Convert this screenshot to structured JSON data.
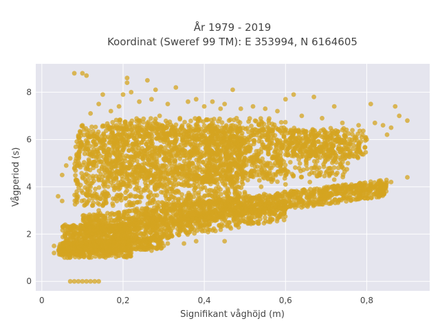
{
  "chart_data": {
    "type": "scatter",
    "title_lines": [
      "År 1979 - 2019",
      "Koordinat (Sweref 99 TM): E 353994, N 6164605"
    ],
    "xlabel": "Signifikant våghöjd (m)",
    "ylabel": "Vågperiod (s)",
    "xlim": [
      -0.015,
      0.955
    ],
    "ylim": [
      -0.4,
      9.2
    ],
    "xticks": [
      0,
      0.2,
      0.4,
      0.6,
      0.8
    ],
    "xtick_labels": [
      "0",
      "0,2",
      "0,4",
      "0,6",
      "0,8"
    ],
    "yticks": [
      0,
      2,
      4,
      6,
      8
    ],
    "ytick_labels": [
      "0",
      "2",
      "4",
      "6",
      "8"
    ],
    "grid": true,
    "marker_color": "#D4A420",
    "plot_bg": "#E5E5EE",
    "series": [
      {
        "values": [
          [
            0.07,
            0
          ],
          [
            0.08,
            0
          ],
          [
            0.09,
            0
          ],
          [
            0.1,
            0
          ],
          [
            0.11,
            0
          ],
          [
            0.12,
            0
          ],
          [
            0.13,
            0
          ],
          [
            0.14,
            0
          ],
          [
            0.08,
            8.8
          ],
          [
            0.1,
            8.8
          ],
          [
            0.11,
            8.7
          ],
          [
            0.21,
            8.6
          ],
          [
            0.26,
            8.5
          ],
          [
            0.21,
            8.4
          ],
          [
            0.33,
            8.2
          ],
          [
            0.28,
            8.1
          ],
          [
            0.47,
            8.1
          ],
          [
            0.22,
            8.0
          ],
          [
            0.15,
            7.9
          ],
          [
            0.2,
            7.9
          ],
          [
            0.38,
            7.7
          ],
          [
            0.42,
            7.6
          ],
          [
            0.45,
            7.5
          ],
          [
            0.62,
            7.9
          ],
          [
            0.6,
            7.7
          ],
          [
            0.67,
            7.8
          ],
          [
            0.81,
            7.5
          ],
          [
            0.72,
            7.4
          ],
          [
            0.87,
            7.4
          ],
          [
            0.88,
            7.0
          ],
          [
            0.9,
            6.8
          ],
          [
            0.86,
            6.5
          ],
          [
            0.85,
            6.2
          ],
          [
            0.8,
            6.0
          ],
          [
            0.55,
            7.3
          ],
          [
            0.52,
            7.4
          ],
          [
            0.05,
            3.4
          ],
          [
            0.04,
            3.6
          ],
          [
            0.05,
            4.5
          ],
          [
            0.06,
            4.9
          ],
          [
            0.07,
            5.2
          ],
          [
            0.09,
            5.8
          ],
          [
            0.09,
            6.1
          ],
          [
            0.1,
            6.6
          ],
          [
            0.12,
            7.1
          ],
          [
            0.14,
            7.5
          ],
          [
            0.17,
            7.2
          ],
          [
            0.19,
            7.4
          ],
          [
            0.24,
            7.6
          ],
          [
            0.27,
            7.7
          ],
          [
            0.31,
            7.5
          ],
          [
            0.36,
            7.6
          ],
          [
            0.4,
            7.4
          ],
          [
            0.44,
            7.3
          ],
          [
            0.49,
            7.3
          ],
          [
            0.58,
            7.2
          ],
          [
            0.64,
            7.0
          ],
          [
            0.69,
            6.9
          ],
          [
            0.74,
            6.7
          ],
          [
            0.78,
            6.6
          ],
          [
            0.82,
            6.7
          ],
          [
            0.84,
            6.6
          ],
          [
            0.45,
            1.7
          ],
          [
            0.38,
            1.7
          ],
          [
            0.35,
            1.6
          ],
          [
            0.3,
            1.5
          ],
          [
            0.25,
            1.4
          ],
          [
            0.2,
            1.4
          ],
          [
            0.15,
            1.3
          ],
          [
            0.1,
            1.2
          ],
          [
            0.06,
            1.2
          ],
          [
            0.03,
            1.2
          ],
          [
            0.03,
            1.5
          ],
          [
            0.22,
            1.2
          ],
          [
            0.27,
            1.3
          ],
          [
            0.31,
            1.6
          ],
          [
            0.9,
            4.4
          ],
          [
            0.86,
            4.2
          ],
          [
            0.83,
            4.2
          ],
          [
            0.8,
            3.9
          ],
          [
            0.75,
            3.8
          ],
          [
            0.7,
            3.6
          ],
          [
            0.66,
            3.6
          ],
          [
            0.6,
            3.3
          ],
          [
            0.55,
            3.1
          ],
          [
            0.5,
            2.9
          ],
          [
            0.45,
            2.6
          ],
          [
            0.4,
            2.4
          ],
          [
            0.35,
            2.2
          ],
          [
            0.3,
            2.0
          ],
          [
            0.25,
            1.9
          ],
          [
            0.2,
            1.7
          ],
          [
            0.16,
            1.6
          ],
          [
            0.12,
            1.5
          ],
          [
            0.08,
            1.4
          ],
          [
            0.1,
            2.3
          ],
          [
            0.12,
            2.6
          ],
          [
            0.09,
            2.0
          ],
          [
            0.14,
            3.0
          ],
          [
            0.15,
            3.2
          ],
          [
            0.11,
            1.9
          ],
          [
            0.36,
            3.5
          ],
          [
            0.42,
            3.6
          ],
          [
            0.48,
            3.8
          ],
          [
            0.54,
            4.0
          ],
          [
            0.6,
            4.1
          ],
          [
            0.66,
            4.2
          ],
          [
            0.72,
            4.3
          ],
          [
            0.78,
            4.1
          ],
          [
            0.82,
            4.0
          ],
          [
            0.7,
            6.3
          ],
          [
            0.74,
            6.4
          ],
          [
            0.78,
            5.8
          ],
          [
            0.73,
            5.6
          ],
          [
            0.68,
            5.9
          ],
          [
            0.64,
            5.7
          ],
          [
            0.62,
            5.5
          ],
          [
            0.58,
            5.3
          ],
          [
            0.52,
            5.0
          ],
          [
            0.48,
            4.6
          ],
          [
            0.44,
            4.5
          ],
          [
            0.67,
            4.8
          ],
          [
            0.7,
            4.6
          ],
          [
            0.73,
            4.8
          ],
          [
            0.5,
            5.2
          ],
          [
            0.56,
            5.8
          ],
          [
            0.61,
            6.0
          ],
          [
            0.65,
            6.2
          ],
          [
            0.23,
            3.9
          ],
          [
            0.29,
            4.1
          ],
          [
            0.35,
            4.2
          ],
          [
            0.26,
            5.5
          ],
          [
            0.31,
            6.0
          ],
          [
            0.37,
            6.2
          ],
          [
            0.43,
            6.4
          ],
          [
            0.47,
            6.6
          ],
          [
            0.12,
            4.0
          ],
          [
            0.14,
            4.4
          ],
          [
            0.16,
            5.2
          ],
          [
            0.18,
            5.6
          ],
          [
            0.2,
            6.0
          ],
          [
            0.22,
            6.4
          ],
          [
            0.24,
            6.8
          ],
          [
            0.29,
            7.0
          ],
          [
            0.34,
            6.9
          ],
          [
            0.39,
            6.8
          ]
        ]
      }
    ],
    "dense_regions": [
      {
        "x": [
          0.08,
          0.5
        ],
        "y": [
          3.2,
          6.6
        ],
        "count": 1400
      },
      {
        "x": [
          0.15,
          0.6
        ],
        "y": [
          4.2,
          6.9
        ],
        "count": 700
      },
      {
        "x": [
          0.4,
          0.76
        ],
        "y": [
          4.4,
          6.5
        ],
        "count": 500
      },
      {
        "x": [
          0.05,
          0.22
        ],
        "y": [
          1.0,
          2.4
        ],
        "count": 500
      },
      {
        "x": [
          0.6,
          0.8
        ],
        "y": [
          5.2,
          6.4
        ],
        "count": 250
      }
    ],
    "dense_bands": [
      {
        "x": [
          0.1,
          0.85
        ],
        "y0": [
          1.9,
          3.6
        ],
        "y1": [
          2.8,
          4.3
        ],
        "count": 1300
      },
      {
        "x": [
          0.12,
          0.6
        ],
        "y0": [
          1.3,
          2.6
        ],
        "y1": [
          2.2,
          3.5
        ],
        "count": 600
      },
      {
        "x": [
          0.04,
          0.3
        ],
        "y0": [
          1.1,
          1.4
        ],
        "y1": [
          1.6,
          1.9
        ],
        "count": 400
      }
    ]
  }
}
